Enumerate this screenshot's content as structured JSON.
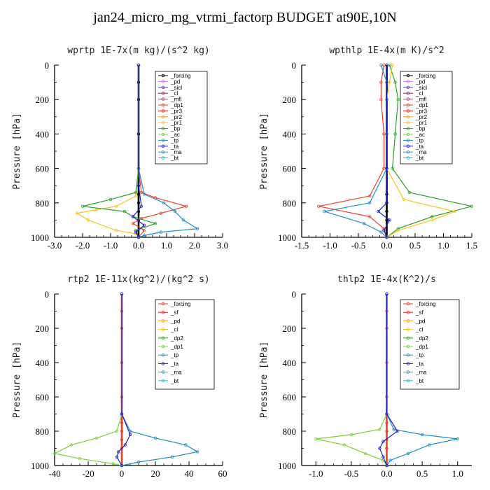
{
  "title": "jan24_micro_mg_vtrmi_factorp  BUDGET at90E,10N",
  "chart_data": [
    {
      "type": "line",
      "title": "wprtp   1E-7x(m kg)/(s^2 kg)",
      "ylabel": "Pressure [hPa]",
      "xlim": [
        -3.0,
        3.0
      ],
      "ylim": [
        1000,
        0
      ],
      "xticks": [
        "-3.0",
        "-2.0",
        "-1.0",
        "0.0",
        "1.0",
        "2.0",
        "3.0"
      ],
      "xtick_values": [
        -3,
        -2,
        -1,
        0,
        1,
        2,
        3
      ],
      "yticks": [
        "0",
        "200",
        "400",
        "600",
        "800",
        "1000"
      ],
      "ytick_values": [
        0,
        200,
        400,
        600,
        800,
        1000
      ],
      "legend": [
        "_forcing",
        "_pd",
        "_sicl",
        "_cl",
        "_mfl",
        "_dp1",
        "_pr3",
        "_pr2",
        "_pr1",
        "_bp",
        "_ac",
        "_tp",
        "_ta",
        "_ma",
        "_bt"
      ],
      "series": [
        {
          "name": "_forcing",
          "color": "#000000",
          "x": [
            0,
            0,
            0,
            0,
            0,
            0,
            0,
            0,
            0,
            0
          ],
          "y": [
            0,
            100,
            200,
            400,
            600,
            750,
            800,
            850,
            900,
            1000
          ]
        },
        {
          "name": "_dp1",
          "color": "#e8402a",
          "x": [
            0,
            0,
            0.1,
            0.6,
            1.7,
            0.8,
            0.1,
            -0.2,
            0.2,
            0
          ],
          "y": [
            0,
            600,
            740,
            770,
            820,
            860,
            890,
            920,
            960,
            1000
          ]
        },
        {
          "name": "_pr1",
          "color": "#f5c518",
          "x": [
            0,
            0,
            -0.1,
            -0.8,
            -1.5,
            -2.2,
            -1.8,
            -0.8,
            -0.1,
            0
          ],
          "y": [
            0,
            600,
            760,
            820,
            840,
            860,
            900,
            960,
            980,
            1000
          ]
        },
        {
          "name": "_bp",
          "color": "#2ca02c",
          "x": [
            0,
            0,
            -0.1,
            -1.0,
            -2.0,
            -0.5,
            -0.2,
            0.6,
            -0.1,
            0
          ],
          "y": [
            0,
            600,
            740,
            780,
            820,
            850,
            880,
            920,
            960,
            1000
          ]
        },
        {
          "name": "_tp",
          "color": "#1f8fbf",
          "x": [
            0,
            0,
            0.2,
            0.9,
            1.3,
            1.6,
            2.1,
            0.8,
            0.2,
            0
          ],
          "y": [
            0,
            600,
            750,
            800,
            850,
            900,
            950,
            970,
            990,
            1000
          ]
        },
        {
          "name": "_ta",
          "color": "#2020c0",
          "x": [
            0,
            0,
            0.1,
            -0.2,
            0.2,
            -0.1,
            0
          ],
          "y": [
            0,
            700,
            820,
            880,
            930,
            970,
            1000
          ]
        }
      ]
    },
    {
      "type": "line",
      "title": "wpthlp   1E-4x(m K)/s^2",
      "ylabel": "Pressure [hPa]",
      "xlim": [
        -1.5,
        1.5
      ],
      "ylim": [
        1000,
        0
      ],
      "xticks": [
        "-1.5",
        "-1.0",
        "-0.5",
        "0.0",
        "0.5",
        "1.0",
        "1.5"
      ],
      "xtick_values": [
        -1.5,
        -1.0,
        -0.5,
        0,
        0.5,
        1.0,
        1.5
      ],
      "yticks": [
        "0",
        "200",
        "400",
        "600",
        "800",
        "1000"
      ],
      "ytick_values": [
        0,
        200,
        400,
        600,
        800,
        1000
      ],
      "legend": [
        "_forcing",
        "_pd",
        "_sicl",
        "_cl",
        "_mfl",
        "_dp1",
        "_pr3",
        "_pr2",
        "_pr1",
        "_bp",
        "_ac",
        "_tp",
        "_ta",
        "_ma",
        "_bt"
      ],
      "series": [
        {
          "name": "_forcing",
          "color": "#000000",
          "x": [
            0,
            0,
            0,
            0,
            0,
            0,
            0,
            0,
            0,
            0
          ],
          "y": [
            0,
            100,
            200,
            400,
            600,
            750,
            800,
            850,
            900,
            1000
          ]
        },
        {
          "name": "_bp",
          "color": "#2ca02c",
          "x": [
            0.05,
            0.15,
            0.2,
            0.15,
            0.1,
            0.4,
            1.5,
            0.8,
            0.2,
            0
          ],
          "y": [
            0,
            100,
            200,
            400,
            600,
            740,
            820,
            880,
            950,
            1000
          ]
        },
        {
          "name": "_dp1",
          "color": "#e8402a",
          "x": [
            -0.05,
            -0.1,
            -0.1,
            -0.05,
            -0.05,
            -0.3,
            -1.2,
            -0.3,
            -0.05,
            0
          ],
          "y": [
            0,
            100,
            200,
            400,
            600,
            760,
            820,
            880,
            950,
            1000
          ]
        },
        {
          "name": "_pr1",
          "color": "#f5c518",
          "x": [
            0.1,
            0.05,
            0,
            0,
            0,
            0.3,
            1.2,
            0.8,
            0.2,
            0
          ],
          "y": [
            0,
            100,
            200,
            400,
            600,
            780,
            850,
            900,
            960,
            1000
          ]
        },
        {
          "name": "_tp",
          "color": "#1f8fbf",
          "x": [
            -0.1,
            0,
            0,
            0,
            0,
            -0.3,
            -1.1,
            -0.4,
            -0.1,
            0
          ],
          "y": [
            0,
            100,
            200,
            400,
            600,
            800,
            850,
            920,
            970,
            1000
          ]
        },
        {
          "name": "_ta",
          "color": "#2020c0",
          "x": [
            0,
            0,
            0,
            -0.15,
            0.05,
            -0.05,
            0
          ],
          "y": [
            0,
            600,
            800,
            850,
            900,
            960,
            1000
          ]
        }
      ]
    },
    {
      "type": "line",
      "title": "rtp2   1E-11x(kg^2)/(kg^2 s)",
      "ylabel": "Pressure [hPa]",
      "xlim": [
        -40,
        60
      ],
      "ylim": [
        1000,
        0
      ],
      "xticks": [
        "-40",
        "-20",
        "0",
        "20",
        "40",
        "60"
      ],
      "xtick_values": [
        -40,
        -20,
        0,
        20,
        40,
        60
      ],
      "yticks": [
        "0",
        "200",
        "400",
        "600",
        "800",
        "1000"
      ],
      "ytick_values": [
        0,
        200,
        400,
        600,
        800,
        1000
      ],
      "legend": [
        "_forcing",
        "_sf",
        "_pd",
        "_cl",
        "_dp2",
        "_dp1",
        "_tp",
        "_ta",
        "_ma",
        "_bt"
      ],
      "series": [
        {
          "name": "_forcing",
          "color": "#e8402a",
          "x": [
            0,
            0,
            0,
            0,
            0,
            0,
            0,
            0,
            0,
            0
          ],
          "y": [
            0,
            100,
            200,
            400,
            600,
            750,
            800,
            850,
            900,
            1000
          ]
        },
        {
          "name": "_dp1",
          "color": "#7cd13a",
          "x": [
            0,
            0,
            -3,
            -15,
            -30,
            -40,
            -25,
            -5,
            0
          ],
          "y": [
            0,
            700,
            800,
            840,
            880,
            930,
            960,
            990,
            1000
          ]
        },
        {
          "name": "_tp",
          "color": "#1f8fbf",
          "x": [
            0,
            0,
            5,
            20,
            38,
            45,
            30,
            10,
            0
          ],
          "y": [
            0,
            700,
            800,
            840,
            880,
            920,
            950,
            980,
            1000
          ]
        },
        {
          "name": "_ta",
          "color": "#2020c0",
          "x": [
            0,
            0,
            5,
            2,
            -2,
            -3,
            0
          ],
          "y": [
            0,
            700,
            820,
            880,
            920,
            950,
            1000
          ]
        }
      ]
    },
    {
      "type": "line",
      "title": "thlp2   1E-4x(K^2)/s",
      "ylabel": "Pressure [hPa]",
      "xlim": [
        -1.2,
        1.2
      ],
      "ylim": [
        1000,
        0
      ],
      "xticks": [
        "-1.0",
        "-0.5",
        "0.0",
        "0.5",
        "1.0"
      ],
      "xtick_values": [
        -1.0,
        -0.5,
        0,
        0.5,
        1.0
      ],
      "yticks": [
        "0",
        "200",
        "400",
        "600",
        "800",
        "1000"
      ],
      "ytick_values": [
        0,
        200,
        400,
        600,
        800,
        1000
      ],
      "legend": [
        "_forcing",
        "_sf",
        "_pd",
        "_cl",
        "_dp2",
        "_dp1",
        "_tp",
        "_ta",
        "_ma",
        "_bt"
      ],
      "series": [
        {
          "name": "_forcing",
          "color": "#e8402a",
          "x": [
            0,
            0,
            0,
            0,
            0,
            0,
            0,
            0,
            0,
            0
          ],
          "y": [
            0,
            100,
            200,
            400,
            600,
            750,
            800,
            850,
            900,
            1000
          ]
        },
        {
          "name": "_dp1",
          "color": "#7cd13a",
          "x": [
            0,
            0,
            -0.1,
            -0.5,
            -1.0,
            -0.6,
            -0.3,
            -0.05,
            0
          ],
          "y": [
            0,
            700,
            790,
            820,
            845,
            880,
            930,
            970,
            1000
          ]
        },
        {
          "name": "_tp",
          "color": "#1f8fbf",
          "x": [
            0,
            0,
            0.1,
            0.5,
            1.0,
            0.6,
            0.3,
            0.05,
            0
          ],
          "y": [
            0,
            700,
            790,
            820,
            845,
            880,
            930,
            970,
            1000
          ]
        },
        {
          "name": "_ta",
          "color": "#2020c0",
          "x": [
            0,
            0,
            0.15,
            -0.05,
            -0.1,
            -0.05,
            0
          ],
          "y": [
            0,
            700,
            800,
            860,
            900,
            950,
            1000
          ]
        }
      ]
    }
  ]
}
